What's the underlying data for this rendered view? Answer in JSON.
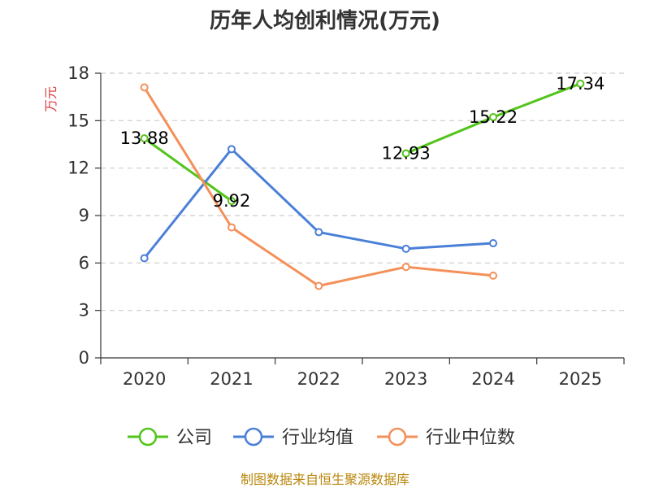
{
  "chart_data": {
    "type": "line",
    "title": "历年人均创利情况(万元)",
    "xlabel": "",
    "ylabel": "万元",
    "categories": [
      "2020",
      "2021",
      "2022",
      "2023",
      "2024",
      "2025"
    ],
    "ylim": [
      0,
      18
    ],
    "yticks": [
      0,
      3,
      6,
      9,
      12,
      15,
      18
    ],
    "grid": true,
    "legend_position": "bottom",
    "series": [
      {
        "name": "公司",
        "color": "#52c41a",
        "values": [
          13.88,
          9.92,
          null,
          12.93,
          15.22,
          17.34
        ],
        "labels": [
          "13.88",
          "9.92",
          "",
          "12.93",
          "15.22",
          "17.34"
        ]
      },
      {
        "name": "行业均值",
        "color": "#4a7fd8",
        "values": [
          6.3,
          13.2,
          7.95,
          6.9,
          7.25,
          null
        ],
        "labels": []
      },
      {
        "name": "行业中位数",
        "color": "#f4905a",
        "values": [
          17.1,
          8.25,
          4.55,
          5.75,
          5.2,
          null
        ],
        "labels": []
      }
    ],
    "source": "制图数据来自恒生聚源数据库",
    "ylabel_color": "#e0393e",
    "source_color": "#b8860b"
  }
}
